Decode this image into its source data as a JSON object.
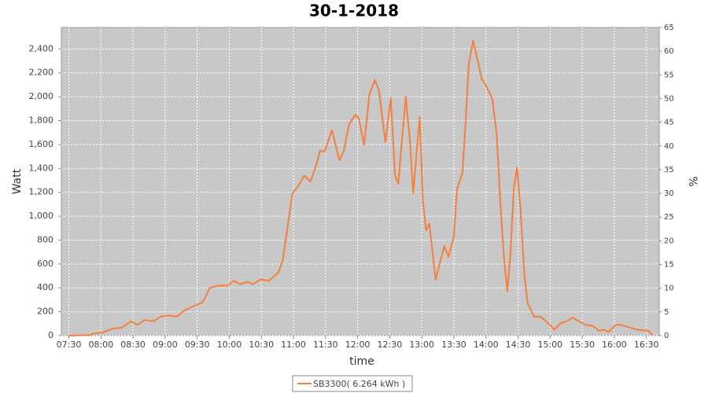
{
  "chart_data": {
    "type": "line",
    "title": "30-1-2018",
    "x_label": "time",
    "y_label": "Watt",
    "y2_label": "%",
    "x": [
      "07:30",
      "07:50",
      "07:54",
      "08:01",
      "08:12",
      "08:19",
      "08:28",
      "08:34",
      "08:41",
      "08:49",
      "08:56",
      "09:03",
      "09:11",
      "09:18",
      "09:25",
      "09:35",
      "09:42",
      "09:50",
      "09:59",
      "10:04",
      "10:10",
      "10:17",
      "10:22",
      "10:29",
      "10:37",
      "10:46",
      "10:50",
      "10:55",
      "10:59",
      "11:05",
      "11:10",
      "11:16",
      "11:21",
      "11:25",
      "11:29",
      "11:36",
      "11:43",
      "11:47",
      "11:52",
      "11:58",
      "12:01",
      "12:06",
      "12:11",
      "12:16",
      "12:20",
      "12:26",
      "12:31",
      "12:35",
      "12:38",
      "12:42",
      "12:45",
      "12:49",
      "12:52",
      "12:55",
      "12:58",
      "13:01",
      "13:04",
      "13:07",
      "13:10",
      "13:13",
      "13:17",
      "13:21",
      "13:25",
      "13:30",
      "13:33",
      "13:38",
      "13:41",
      "13:44",
      "13:48",
      "13:52",
      "13:56",
      "14:01",
      "14:06",
      "14:10",
      "14:14",
      "14:17",
      "14:20",
      "14:23",
      "14:26",
      "14:29",
      "14:32",
      "14:36",
      "14:39",
      "14:45",
      "14:51",
      "14:58",
      "15:04",
      "15:10",
      "15:15",
      "15:21",
      "15:26",
      "15:33",
      "15:40",
      "15:46",
      "15:50",
      "15:55",
      "16:01",
      "16:06",
      "16:14",
      "16:21",
      "16:27",
      "16:32",
      "16:36"
    ],
    "series": [
      {
        "name": "SB3300( 6.264 kWh )",
        "color": "#f5803e",
        "values": [
          0,
          5,
          20,
          25,
          60,
          65,
          120,
          90,
          130,
          120,
          160,
          170,
          160,
          210,
          240,
          280,
          400,
          420,
          420,
          460,
          430,
          450,
          430,
          470,
          460,
          530,
          630,
          940,
          1190,
          1260,
          1340,
          1290,
          1420,
          1550,
          1540,
          1720,
          1470,
          1540,
          1770,
          1850,
          1820,
          1600,
          2020,
          2140,
          2050,
          1620,
          1990,
          1340,
          1270,
          1690,
          2000,
          1620,
          1190,
          1520,
          1830,
          1130,
          880,
          940,
          700,
          470,
          610,
          750,
          660,
          830,
          1230,
          1360,
          1790,
          2280,
          2470,
          2310,
          2150,
          2080,
          1980,
          1690,
          1030,
          630,
          370,
          700,
          1230,
          1410,
          1090,
          500,
          270,
          160,
          160,
          105,
          50,
          105,
          120,
          150,
          125,
          90,
          80,
          40,
          50,
          30,
          90,
          90,
          70,
          50,
          45,
          40,
          0
        ]
      }
    ],
    "xlim": [
      "07:23",
      "16:42"
    ],
    "xticks": [
      "07:30",
      "08:00",
      "08:30",
      "09:00",
      "09:30",
      "10:00",
      "10:30",
      "11:00",
      "11:30",
      "12:00",
      "12:30",
      "13:00",
      "13:30",
      "14:00",
      "14:30",
      "15:00",
      "15:30",
      "16:00",
      "16:30"
    ],
    "ylim": [
      0,
      2580
    ],
    "yticks": [
      0,
      200,
      400,
      600,
      800,
      {
        "value": 1000,
        "label": "1,000"
      },
      {
        "value": 1200,
        "label": "1,200"
      },
      {
        "value": 1400,
        "label": "1,400"
      },
      {
        "value": 1600,
        "label": "1,600"
      },
      {
        "value": 1800,
        "label": "1,800"
      },
      {
        "value": 2000,
        "label": "2,000"
      },
      {
        "value": 2200,
        "label": "2,200"
      },
      {
        "value": 2400,
        "label": "2,400"
      }
    ],
    "y2lim": [
      0,
      65
    ],
    "y2ticks": [
      0,
      5,
      10,
      15,
      20,
      25,
      30,
      35,
      40,
      45,
      50,
      55,
      60,
      65
    ],
    "grid": true,
    "plot_background": "#c8c8c8",
    "legend": "bottom"
  }
}
